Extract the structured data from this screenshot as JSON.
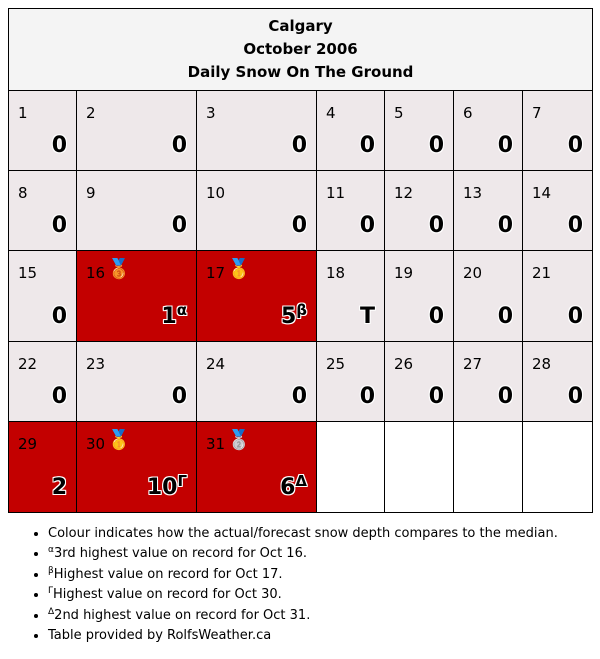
{
  "header": {
    "city": "Calgary",
    "month": "October 2006",
    "metric": "Daily Snow On The Ground"
  },
  "colors": {
    "normal": "#eee8ea",
    "record": "#c30000",
    "header_bg": "#f4f4f4"
  },
  "chart_data": {
    "type": "table",
    "title": "Calgary October 2006 Daily Snow On The Ground",
    "weeks": [
      [
        {
          "day": "1",
          "value": "0"
        },
        {
          "day": "2",
          "value": "0"
        },
        {
          "day": "3",
          "value": "0"
        },
        {
          "day": "4",
          "value": "0"
        },
        {
          "day": "5",
          "value": "0"
        },
        {
          "day": "6",
          "value": "0"
        },
        {
          "day": "7",
          "value": "0"
        }
      ],
      [
        {
          "day": "8",
          "value": "0"
        },
        {
          "day": "9",
          "value": "0"
        },
        {
          "day": "10",
          "value": "0"
        },
        {
          "day": "11",
          "value": "0"
        },
        {
          "day": "12",
          "value": "0"
        },
        {
          "day": "13",
          "value": "0"
        },
        {
          "day": "14",
          "value": "0"
        }
      ],
      [
        {
          "day": "15",
          "value": "0"
        },
        {
          "day": "16",
          "value": "1",
          "note": "α",
          "medal": "🥉",
          "highlight": true
        },
        {
          "day": "17",
          "value": "5",
          "note": "β",
          "medal": "🥇",
          "highlight": true
        },
        {
          "day": "18",
          "value": "T"
        },
        {
          "day": "19",
          "value": "0"
        },
        {
          "day": "20",
          "value": "0"
        },
        {
          "day": "21",
          "value": "0"
        }
      ],
      [
        {
          "day": "22",
          "value": "0"
        },
        {
          "day": "23",
          "value": "0"
        },
        {
          "day": "24",
          "value": "0"
        },
        {
          "day": "25",
          "value": "0"
        },
        {
          "day": "26",
          "value": "0"
        },
        {
          "day": "27",
          "value": "0"
        },
        {
          "day": "28",
          "value": "0"
        }
      ],
      [
        {
          "day": "29",
          "value": "2",
          "highlight": true
        },
        {
          "day": "30",
          "value": "10",
          "note": "Γ",
          "medal": "🥇",
          "highlight": true
        },
        {
          "day": "31",
          "value": "6",
          "note": "Δ",
          "medal": "🥈",
          "highlight": true
        },
        null,
        null,
        null,
        null
      ]
    ]
  },
  "notes": [
    {
      "marker": "",
      "text": "Colour indicates how the actual/forecast snow depth compares to the median."
    },
    {
      "marker": "α",
      "text": "3rd highest value on record for Oct 16."
    },
    {
      "marker": "β",
      "text": "Highest value on record for Oct 17."
    },
    {
      "marker": "Γ",
      "text": "Highest value on record for Oct 30."
    },
    {
      "marker": "Δ",
      "text": "2nd highest value on record for Oct 31."
    },
    {
      "marker": "",
      "text": "Table provided by RolfsWeather.ca"
    }
  ]
}
